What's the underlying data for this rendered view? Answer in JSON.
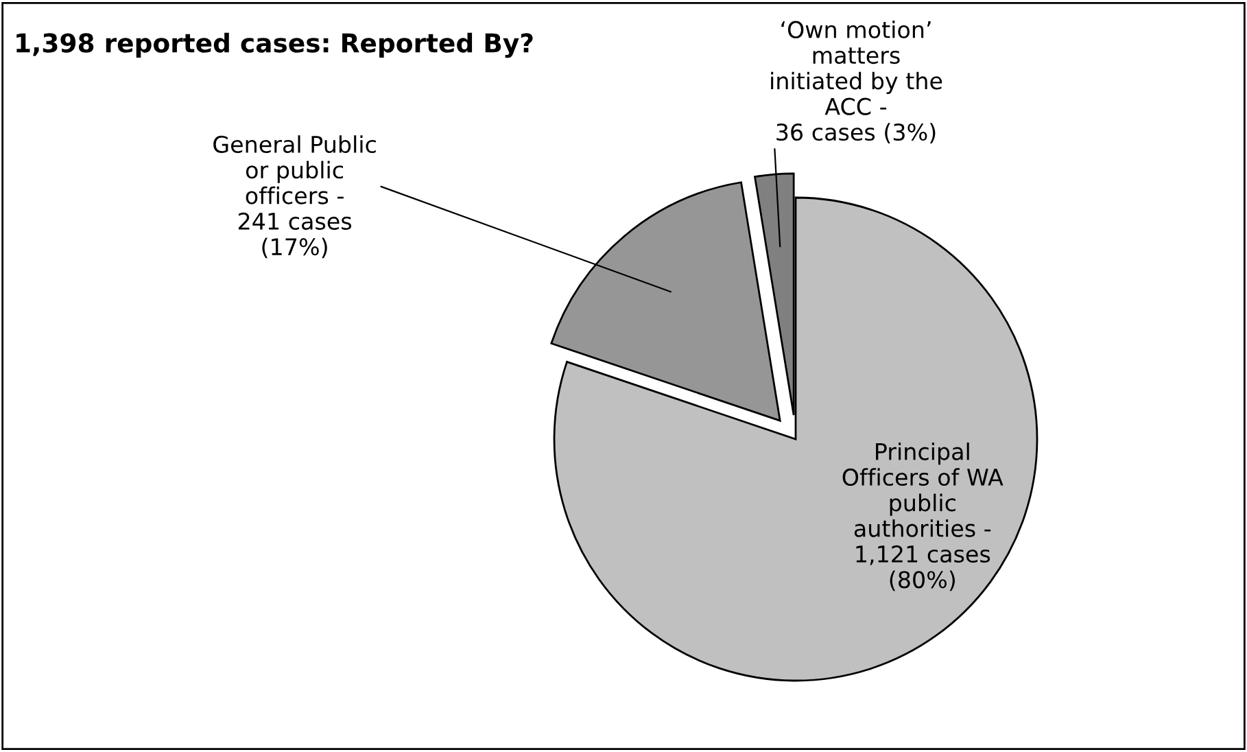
{
  "chart_data": {
    "type": "pie",
    "title": "1,398 reported cases: Reported By?",
    "categories": [
      "Principal\nOfficers of WA\npublic\nauthorities -\n1,121 cases\n(80%)",
      "General Public\nor public\nofficers -\n241 cases\n(17%)",
      "‘Own motion’\nmatters\ninitiated by the\nACC -\n36 cases (3%)"
    ],
    "values": [
      1121,
      241,
      36
    ],
    "colors": [
      "#c0c0c0",
      "#969696",
      "#808080"
    ]
  }
}
